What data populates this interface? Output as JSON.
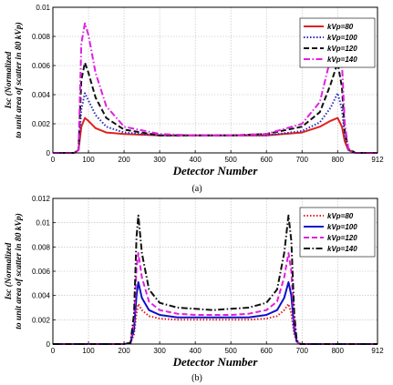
{
  "chart_data": [
    {
      "id": "a",
      "type": "line",
      "panel_label": "(a)",
      "xlabel": "Detector Number",
      "ylabel_lines": [
        "Isc (Normalized",
        "to unit area of scatter in 80 kVp)"
      ],
      "xlim": [
        0,
        912
      ],
      "ylim": [
        0,
        0.01
      ],
      "x_ticks": [
        0,
        100,
        200,
        300,
        400,
        500,
        600,
        700,
        800,
        912
      ],
      "x_tick_labels": [
        "0",
        "100",
        "200",
        "300",
        "400",
        "500",
        "600",
        "700",
        "800",
        "912"
      ],
      "y_ticks": [
        0,
        0.002,
        0.004,
        0.006,
        0.008,
        0.01
      ],
      "y_tick_labels": [
        "0",
        "0.002",
        "0.004",
        "0.006",
        "0.008",
        "0.01"
      ],
      "grid": true,
      "legend_position": "top-right",
      "series": [
        {
          "name": "kVp=80",
          "color": "#e02020",
          "dash": "solid",
          "x": [
            0,
            60,
            72,
            80,
            90,
            100,
            120,
            150,
            200,
            300,
            400,
            456,
            500,
            600,
            700,
            750,
            780,
            800,
            812,
            820,
            830,
            850,
            912
          ],
          "y": [
            0,
            0,
            0.0002,
            0.0018,
            0.0024,
            0.0022,
            0.0017,
            0.0014,
            0.0013,
            0.0012,
            0.0012,
            0.0012,
            0.0012,
            0.0012,
            0.0014,
            0.0018,
            0.0022,
            0.0024,
            0.0018,
            0.0008,
            0.0002,
            0,
            0
          ]
        },
        {
          "name": "kVp=100",
          "color": "#2a2ab8",
          "dash": "dotted",
          "x": [
            0,
            60,
            72,
            80,
            90,
            100,
            120,
            150,
            200,
            300,
            400,
            456,
            500,
            600,
            700,
            750,
            780,
            800,
            812,
            820,
            830,
            850,
            912
          ],
          "y": [
            0,
            0,
            0.0002,
            0.003,
            0.0041,
            0.0036,
            0.0026,
            0.0018,
            0.0014,
            0.0012,
            0.0012,
            0.0012,
            0.0012,
            0.0012,
            0.0015,
            0.0021,
            0.0031,
            0.0041,
            0.003,
            0.0012,
            0.0002,
            0,
            0
          ]
        },
        {
          "name": "kVp=120",
          "color": "#111111",
          "dash": "dashed",
          "x": [
            0,
            60,
            72,
            80,
            90,
            100,
            120,
            150,
            200,
            300,
            400,
            456,
            500,
            600,
            700,
            750,
            780,
            800,
            812,
            820,
            830,
            850,
            912
          ],
          "y": [
            0,
            0,
            0.0002,
            0.005,
            0.0062,
            0.0055,
            0.0038,
            0.0024,
            0.0016,
            0.0012,
            0.0012,
            0.0012,
            0.0012,
            0.0013,
            0.0018,
            0.0028,
            0.0047,
            0.0062,
            0.0045,
            0.0015,
            0.0003,
            0,
            0
          ]
        },
        {
          "name": "kVp=140",
          "color": "#e020e0",
          "dash": "dashdot",
          "x": [
            0,
            60,
            72,
            80,
            90,
            100,
            120,
            150,
            200,
            300,
            400,
            456,
            500,
            600,
            700,
            750,
            780,
            800,
            812,
            820,
            830,
            850,
            912
          ],
          "y": [
            0,
            0,
            0.0002,
            0.0075,
            0.0089,
            0.0081,
            0.0055,
            0.0032,
            0.0018,
            0.0013,
            0.0012,
            0.0012,
            0.0012,
            0.0013,
            0.002,
            0.0035,
            0.0065,
            0.0089,
            0.0062,
            0.002,
            0.0003,
            0,
            0
          ]
        }
      ]
    },
    {
      "id": "b",
      "type": "line",
      "panel_label": "(b)",
      "xlabel": "Detector Number",
      "ylabel_lines": [
        "Isc (Normalized",
        "to unit area of scatter in 80 kVp)"
      ],
      "xlim": [
        0,
        912
      ],
      "ylim": [
        0,
        0.012
      ],
      "x_ticks": [
        0,
        100,
        200,
        300,
        400,
        500,
        600,
        700,
        800,
        912
      ],
      "x_tick_labels": [
        "0",
        "100",
        "200",
        "300",
        "400",
        "500",
        "600",
        "700",
        "800",
        "912"
      ],
      "y_ticks": [
        0,
        0.002,
        0.004,
        0.006,
        0.008,
        0.01,
        0.012
      ],
      "y_tick_labels": [
        "0",
        "0.002",
        "0.004",
        "0.006",
        "0.008",
        "0.01",
        "0.012"
      ],
      "grid": true,
      "legend_position": "top-right",
      "series": [
        {
          "name": "kVp=80",
          "color": "#e02020",
          "dash": "dotted",
          "x": [
            0,
            200,
            218,
            228,
            235,
            240,
            250,
            270,
            300,
            350,
            400,
            450,
            500,
            550,
            600,
            630,
            650,
            662,
            670,
            678,
            685,
            695,
            720,
            912
          ],
          "y": [
            0,
            0,
            0.0001,
            0.0008,
            0.0025,
            0.0033,
            0.0028,
            0.0023,
            0.0021,
            0.002,
            0.002,
            0.002,
            0.002,
            0.002,
            0.0021,
            0.0023,
            0.0028,
            0.0033,
            0.0025,
            0.0008,
            0.0002,
            0,
            0,
            0
          ]
        },
        {
          "name": "kVp=100",
          "color": "#1010c8",
          "dash": "solid",
          "x": [
            0,
            200,
            218,
            228,
            235,
            240,
            250,
            270,
            300,
            350,
            400,
            450,
            500,
            550,
            600,
            630,
            650,
            662,
            670,
            678,
            685,
            695,
            720,
            912
          ],
          "y": [
            0,
            0,
            0.0001,
            0.0012,
            0.004,
            0.0051,
            0.0038,
            0.0028,
            0.0024,
            0.0022,
            0.0022,
            0.0022,
            0.0022,
            0.0022,
            0.0024,
            0.0028,
            0.0038,
            0.0051,
            0.004,
            0.0012,
            0.0002,
            0,
            0,
            0
          ]
        },
        {
          "name": "kVp=120",
          "color": "#e020e0",
          "dash": "dashed",
          "x": [
            0,
            200,
            218,
            228,
            235,
            240,
            250,
            270,
            300,
            350,
            400,
            450,
            500,
            550,
            600,
            630,
            650,
            662,
            670,
            678,
            685,
            695,
            720,
            912
          ],
          "y": [
            0,
            0,
            0.0001,
            0.0018,
            0.0062,
            0.0075,
            0.0055,
            0.0035,
            0.0028,
            0.0025,
            0.0024,
            0.0024,
            0.0024,
            0.0025,
            0.0028,
            0.0035,
            0.0055,
            0.0075,
            0.006,
            0.0018,
            0.0002,
            0,
            0,
            0
          ]
        },
        {
          "name": "kVp=140",
          "color": "#111111",
          "dash": "dashdot",
          "x": [
            0,
            200,
            218,
            228,
            235,
            240,
            250,
            270,
            300,
            350,
            400,
            450,
            500,
            550,
            600,
            630,
            650,
            662,
            670,
            678,
            685,
            695,
            720,
            912
          ],
          "y": [
            0,
            0,
            0.0001,
            0.0025,
            0.0088,
            0.0106,
            0.0075,
            0.0045,
            0.0034,
            0.003,
            0.0029,
            0.0028,
            0.0029,
            0.003,
            0.0034,
            0.0045,
            0.0075,
            0.0106,
            0.0085,
            0.0025,
            0.0003,
            0,
            0,
            0
          ]
        }
      ]
    }
  ]
}
